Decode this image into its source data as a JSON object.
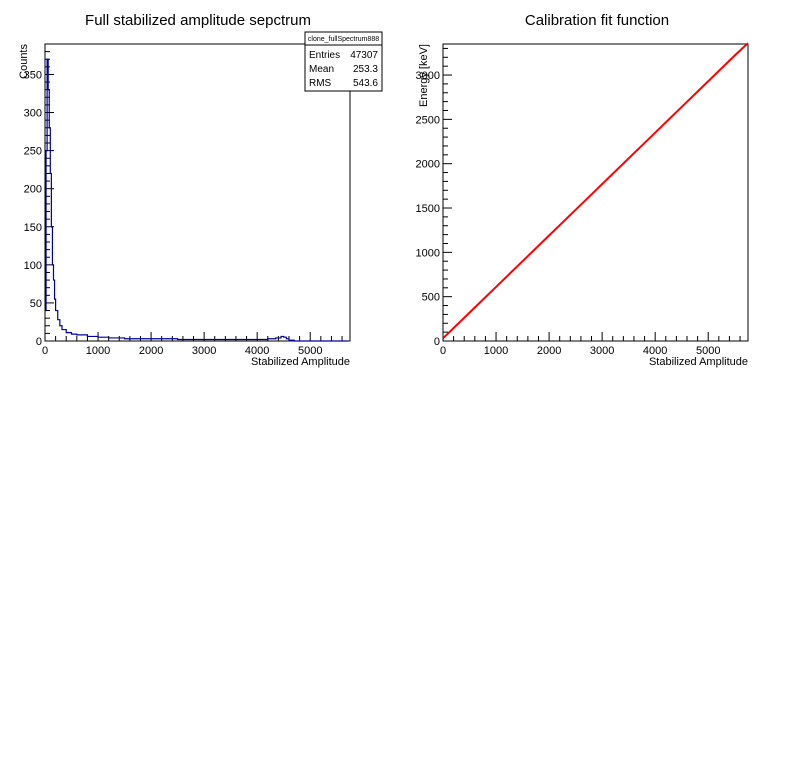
{
  "chart_data": [
    {
      "type": "line",
      "title": "Full stabilized amplitude sepctrum",
      "xlabel": "Stabilized Amplitude",
      "ylabel": "Counts",
      "xlim": [
        0,
        5750
      ],
      "ylim": [
        0,
        390
      ],
      "xticks": [
        "0",
        "1000",
        "2000",
        "3000",
        "4000",
        "5000"
      ],
      "yticks": [
        "0",
        "50",
        "100",
        "150",
        "200",
        "250",
        "300",
        "350"
      ],
      "grid": false,
      "series_color": "#000099",
      "stats": {
        "name": "clone_fullSpectrum888",
        "rows": [
          {
            "label": "Entries",
            "value": "47307"
          },
          {
            "label": "Mean",
            "value": "253.3"
          },
          {
            "label": "RMS",
            "value": "543.6"
          }
        ]
      },
      "x": [
        0,
        20,
        40,
        60,
        80,
        100,
        120,
        140,
        160,
        180,
        200,
        240,
        280,
        320,
        400,
        500,
        600,
        800,
        1000,
        1200,
        1500,
        2000,
        2500,
        3000,
        3500,
        4000,
        4200,
        4350,
        4450,
        4500,
        4550,
        4600,
        4700,
        5000,
        5500
      ],
      "values": [
        40,
        250,
        370,
        330,
        280,
        220,
        150,
        100,
        80,
        55,
        40,
        28,
        20,
        15,
        11,
        9,
        8,
        6,
        5,
        4,
        3,
        3,
        2,
        2,
        2,
        2,
        3,
        4,
        6,
        5,
        3,
        1,
        0,
        0,
        0
      ]
    },
    {
      "type": "line",
      "title": "Calibration fit function",
      "xlabel": "Stabilized Amplitude",
      "ylabel": "Energy [keV]",
      "xlim": [
        0,
        5750
      ],
      "ylim": [
        0,
        3350
      ],
      "xticks": [
        "0",
        "1000",
        "2000",
        "3000",
        "4000",
        "5000"
      ],
      "yticks": [
        "0",
        "500",
        "1000",
        "1500",
        "2000",
        "2500",
        "3000"
      ],
      "grid": false,
      "series_color": "#ff0000",
      "x": [
        0,
        500,
        1000,
        1500,
        2000,
        2500,
        3000,
        3500,
        4000,
        4500,
        5000,
        5500,
        5750
      ],
      "values": [
        30,
        320,
        610,
        900,
        1190,
        1480,
        1770,
        2060,
        2350,
        2640,
        2930,
        3220,
        3360
      ]
    }
  ]
}
